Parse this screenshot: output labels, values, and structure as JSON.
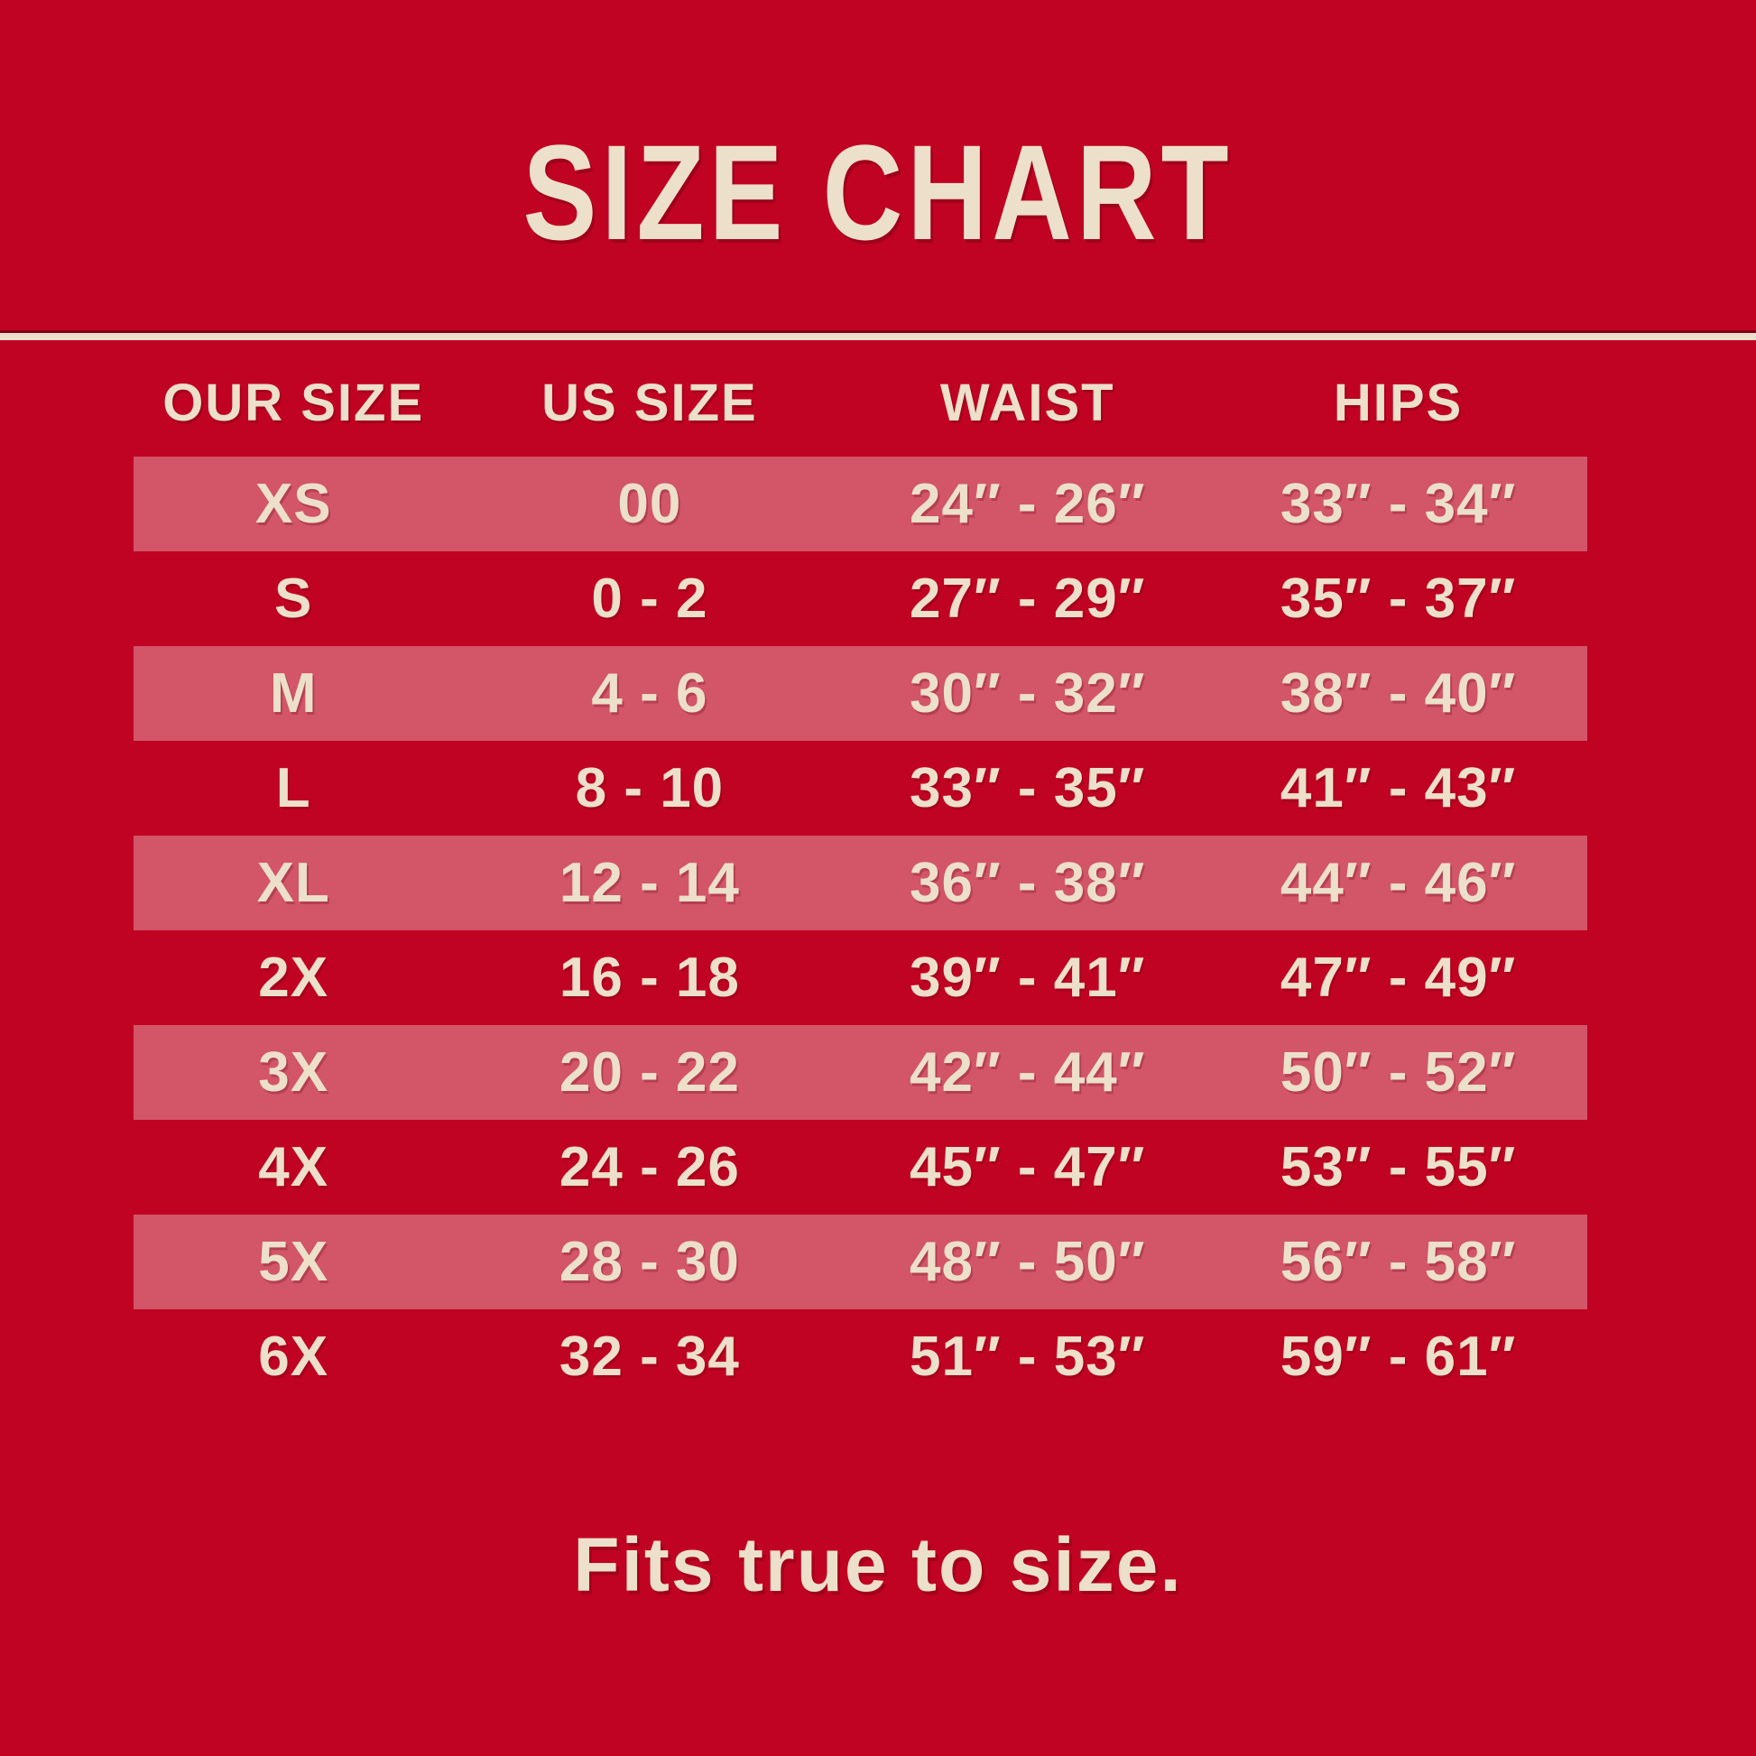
{
  "title": "SIZE CHART",
  "footer_note": "Fits true to size.",
  "colors": {
    "background": "#C00322",
    "row_stripe": "#D25568",
    "text_cream": "#EDE0CB"
  },
  "chart_data": {
    "type": "table",
    "title": "SIZE CHART",
    "columns": [
      "OUR SIZE",
      "US SIZE",
      "WAIST",
      "HIPS"
    ],
    "rows": [
      [
        "XS",
        "00",
        "24″ - 26″",
        "33″ - 34″"
      ],
      [
        "S",
        "0 - 2",
        "27″ - 29″",
        "35″ - 37″"
      ],
      [
        "M",
        "4 - 6",
        "30″ - 32″",
        "38″ - 40″"
      ],
      [
        "L",
        "8 - 10",
        "33″ - 35″",
        "41″ - 43″"
      ],
      [
        "XL",
        "12 - 14",
        "36″ - 38″",
        "44″ - 46″"
      ],
      [
        "2X",
        "16 - 18",
        "39″ - 41″",
        "47″ - 49″"
      ],
      [
        "3X",
        "20 - 22",
        "42″ - 44″",
        "50″ - 52″"
      ],
      [
        "4X",
        "24 - 26",
        "45″ - 47″",
        "53″ - 55″"
      ],
      [
        "5X",
        "28 - 30",
        "48″ - 50″",
        "56″ - 58″"
      ],
      [
        "6X",
        "32 - 34",
        "51″ - 53″",
        "59″ - 61″"
      ]
    ],
    "note": "Fits true to size.",
    "layout_hints": {
      "striped_rows": "odd data rows (XS, M, XL, 3X, 5X) highlighted",
      "alignment": "all columns center-aligned"
    }
  }
}
